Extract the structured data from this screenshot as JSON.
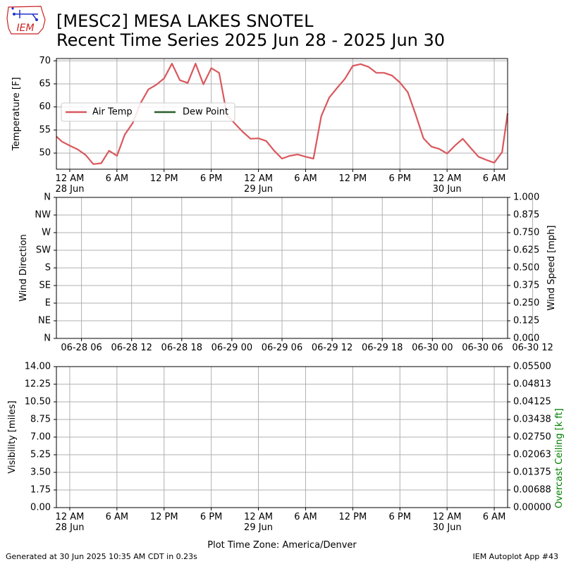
{
  "header": {
    "logo_text": "IEM",
    "title_line1": "[MESC2] MESA LAKES SNOTEL",
    "title_line2": "Recent Time Series 2025 Jun 28 - 2025 Jun 30"
  },
  "footer": {
    "generated": "Generated at 30 Jun 2025 10:35 AM CDT in 0.23s",
    "app": "IEM Autoplot App #43"
  },
  "colors": {
    "air_temp": "#d9585d",
    "dew_point": "#2a5e2a",
    "ceiling_label": "#008000",
    "grid": "#b0b0b0"
  },
  "chart_data": [
    {
      "type": "line",
      "ylabel": "Temperature [F]",
      "ylim": [
        46.5,
        70.5
      ],
      "yticks": [
        50,
        55,
        60,
        65,
        70
      ],
      "xlim_hours": [
        -1.7,
        55.7
      ],
      "xticks": [
        {
          "hour": 0,
          "label": "12 AM",
          "sub": "28 Jun"
        },
        {
          "hour": 6,
          "label": "6 AM",
          "sub": ""
        },
        {
          "hour": 12,
          "label": "12 PM",
          "sub": ""
        },
        {
          "hour": 18,
          "label": "6 PM",
          "sub": ""
        },
        {
          "hour": 24,
          "label": "12 AM",
          "sub": "29 Jun"
        },
        {
          "hour": 30,
          "label": "6 AM",
          "sub": ""
        },
        {
          "hour": 36,
          "label": "12 PM",
          "sub": ""
        },
        {
          "hour": 42,
          "label": "6 PM",
          "sub": ""
        },
        {
          "hour": 48,
          "label": "12 AM",
          "sub": "30 Jun"
        },
        {
          "hour": 54,
          "label": "6 AM",
          "sub": ""
        }
      ],
      "grid": true,
      "legend": "center-left",
      "series": [
        {
          "name": "Air Temp",
          "x": [
            -1.7,
            -1,
            0,
            1,
            2,
            3,
            4,
            5,
            6,
            7,
            8,
            9,
            10,
            11,
            12,
            13,
            14,
            15,
            16,
            17,
            18,
            19,
            20,
            21,
            22,
            23,
            24,
            25,
            26,
            27,
            28,
            29,
            30,
            31,
            32,
            33,
            34,
            35,
            36,
            37,
            38,
            39,
            40,
            41,
            42,
            43,
            44,
            45,
            46,
            47,
            48,
            49,
            50,
            51,
            52,
            53,
            54,
            55,
            55.7
          ],
          "values": [
            53.6,
            52.5,
            51.6,
            50.8,
            49.6,
            47.6,
            47.8,
            50.5,
            49.4,
            54.0,
            56.5,
            60.8,
            63.8,
            64.8,
            66.2,
            69.4,
            65.8,
            65.2,
            69.4,
            64.9,
            68.4,
            67.4,
            58.2,
            56.4,
            54.6,
            53.1,
            53.2,
            52.6,
            50.5,
            48.8,
            49.4,
            49.7,
            49.2,
            48.8,
            58.0,
            62.0,
            64.1,
            66.1,
            68.9,
            69.3,
            68.7,
            67.4,
            67.4,
            66.8,
            65.3,
            63.2,
            58.4,
            53.2,
            51.4,
            50.9,
            49.9,
            51.6,
            53.1,
            51.1,
            49.2,
            48.5,
            47.9,
            50.2,
            58.6
          ]
        },
        {
          "name": "Dew Point",
          "x": [],
          "values": []
        }
      ]
    },
    {
      "type": "line",
      "ylabel": "Wind Direction",
      "ylabel_right": "Wind Speed [mph]",
      "y_categories": [
        "N",
        "NE",
        "E",
        "SE",
        "S",
        "SW",
        "W",
        "NW",
        "N"
      ],
      "yticks_right": [
        "0.000",
        "0.125",
        "0.250",
        "0.375",
        "0.500",
        "0.625",
        "0.750",
        "0.875",
        "1.000"
      ],
      "ylim_right": [
        0,
        1
      ],
      "xticks": [
        "06-28 06",
        "06-28 12",
        "06-28 18",
        "06-29 00",
        "06-29 06",
        "06-29 12",
        "06-29 18",
        "06-30 00",
        "06-30 06",
        "06-30 12"
      ],
      "grid": true,
      "series": []
    },
    {
      "type": "line",
      "ylabel": "Visibility [miles]",
      "ylabel_right": "Overcast Ceiling [k ft]",
      "yticks": [
        "0.00",
        "1.75",
        "3.50",
        "5.25",
        "7.00",
        "8.75",
        "10.50",
        "12.25",
        "14.00"
      ],
      "ylim": [
        0,
        14
      ],
      "yticks_right": [
        "0.00000",
        "0.00688",
        "0.01375",
        "0.02063",
        "0.02750",
        "0.03438",
        "0.04125",
        "0.04813",
        "0.05500"
      ],
      "ylim_right": [
        0,
        0.055
      ],
      "xticks": [
        {
          "hour": 0,
          "label": "12 AM",
          "sub": "28 Jun"
        },
        {
          "hour": 6,
          "label": "6 AM",
          "sub": ""
        },
        {
          "hour": 12,
          "label": "12 PM",
          "sub": ""
        },
        {
          "hour": 18,
          "label": "6 PM",
          "sub": ""
        },
        {
          "hour": 24,
          "label": "12 AM",
          "sub": "29 Jun"
        },
        {
          "hour": 30,
          "label": "6 AM",
          "sub": ""
        },
        {
          "hour": 36,
          "label": "12 PM",
          "sub": ""
        },
        {
          "hour": 42,
          "label": "6 PM",
          "sub": ""
        },
        {
          "hour": 48,
          "label": "12 AM",
          "sub": "30 Jun"
        },
        {
          "hour": 54,
          "label": "6 AM",
          "sub": ""
        }
      ],
      "xlabel": "Plot Time Zone: America/Denver",
      "grid": true,
      "series": []
    }
  ]
}
